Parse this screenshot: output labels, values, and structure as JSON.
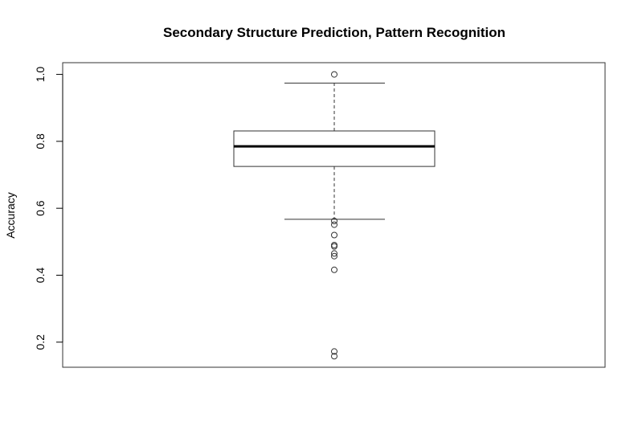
{
  "chart_data": {
    "type": "boxplot",
    "title": "Secondary Structure Prediction,  Pattern Recognition",
    "xlabel": "",
    "ylabel": "Accuracy",
    "ylim": [
      0.125,
      1.035
    ],
    "yticks": [
      0.2,
      0.4,
      0.6,
      0.8,
      1.0
    ],
    "ytick_labels": [
      "0.2",
      "0.4",
      "0.6",
      "0.8",
      "1.0"
    ],
    "grid": false,
    "box": {
      "whisker_low": 0.567,
      "q1": 0.725,
      "median": 0.785,
      "q3": 0.831,
      "whisker_high": 0.974
    },
    "outliers": [
      1.0,
      0.562,
      0.551,
      0.52,
      0.49,
      0.486,
      0.465,
      0.457,
      0.416,
      0.172,
      0.158
    ]
  }
}
